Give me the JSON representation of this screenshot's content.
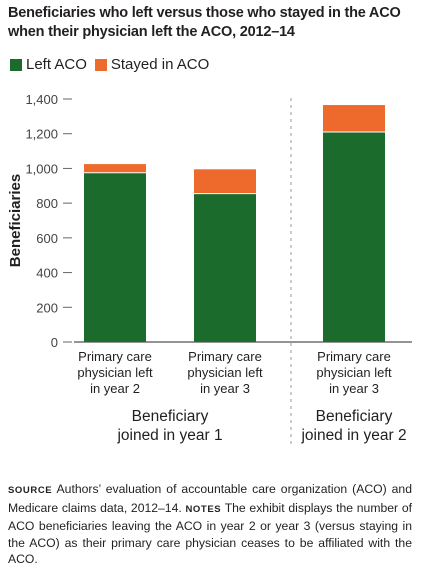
{
  "title": "Beneficiaries who left versus those who stayed in the ACO when their physician left the ACO, 2012–14",
  "colors": {
    "left": "#1b6b2d",
    "stayed": "#ee6a2c",
    "axis": "#555555",
    "text": "#231f20"
  },
  "chart_data": {
    "type": "bar",
    "stacked": true,
    "ylabel": "Beneficiaries",
    "ylim": [
      0,
      1400
    ],
    "yticks": [
      0,
      200,
      400,
      600,
      800,
      1000,
      1200,
      1400
    ],
    "ytick_labels": [
      "0",
      "200",
      "400",
      "600",
      "800",
      "1,000",
      "1,200",
      "1,400"
    ],
    "categories": [
      "Primary care physician left in year 2",
      "Primary care physician left in year 3",
      "Primary care physician left in year 3"
    ],
    "category_lines": [
      [
        "Primary care",
        "physician left",
        "in year 2"
      ],
      [
        "Primary care",
        "physician left",
        "in year 3"
      ],
      [
        "Primary care",
        "physician left",
        "in year 3"
      ]
    ],
    "groups": [
      {
        "lines": [
          "Beneficiary",
          "joined in year 1"
        ],
        "categories": [
          0,
          1
        ]
      },
      {
        "lines": [
          "Beneficiary",
          "joined in year 2"
        ],
        "categories": [
          2
        ]
      }
    ],
    "series": [
      {
        "name": "Left ACO",
        "values": [
          975,
          855,
          1210
        ]
      },
      {
        "name": "Stayed in ACO",
        "values": [
          50,
          140,
          155
        ]
      }
    ],
    "legend_position": "top-left",
    "grid": false
  },
  "notes": {
    "source_label": "SOURCE",
    "source_text": " Authors’ evaluation of accountable care organization (ACO) and Medicare claims data, 2012–14. ",
    "notes_label": "NOTES",
    "notes_text": " The exhibit displays the number of ACO beneficiaries leaving the ACO in year 2 or year 3 (versus staying in the ACO) as their primary care physician ceases to be affiliated with the ACO."
  }
}
